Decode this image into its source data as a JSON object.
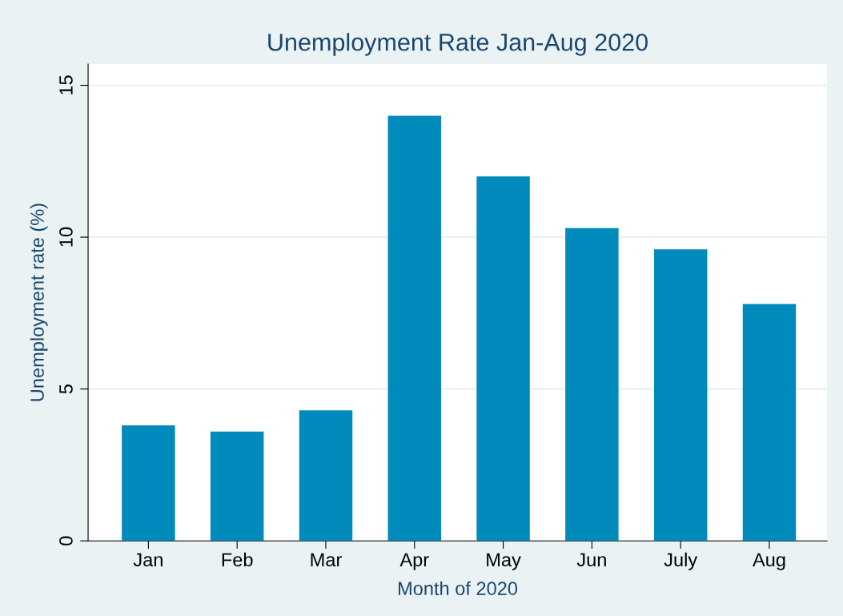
{
  "chart_data": {
    "type": "bar",
    "title": "Unemployment Rate Jan-Aug 2020",
    "xlabel": "Month of 2020",
    "ylabel": "Unemployment rate (%)",
    "categories": [
      "Jan",
      "Feb",
      "Mar",
      "Apr",
      "May",
      "Jun",
      "July",
      "Aug"
    ],
    "values": [
      3.8,
      3.6,
      4.3,
      14.0,
      12.0,
      10.3,
      9.6,
      7.8
    ],
    "color": "#008bbc",
    "ylim": [
      0,
      15.7
    ],
    "yticks": [
      0,
      5,
      10,
      15
    ],
    "grid": "y"
  }
}
